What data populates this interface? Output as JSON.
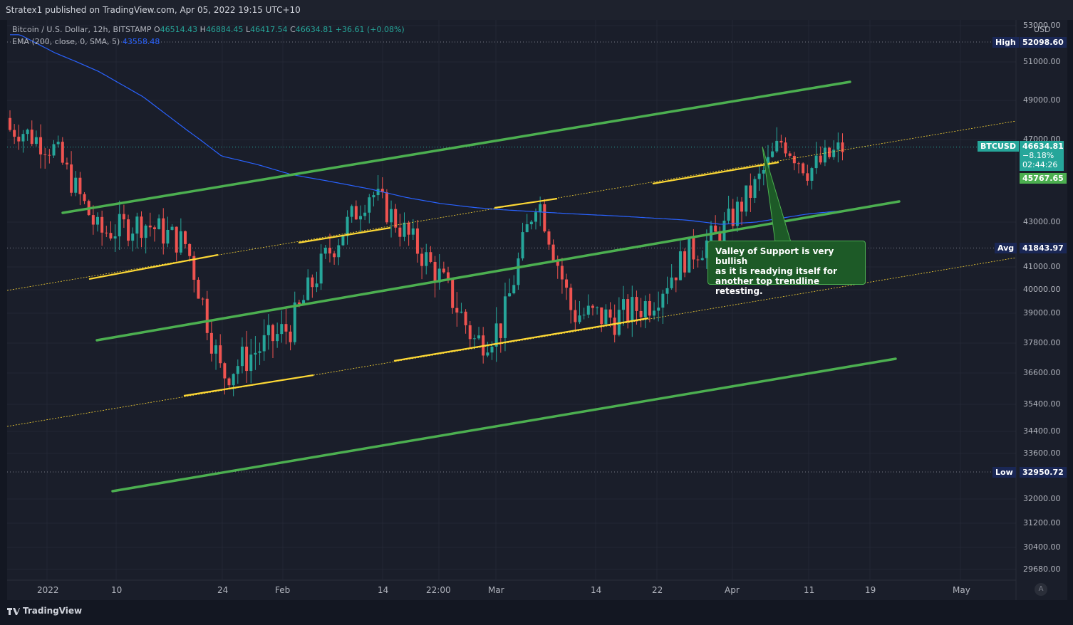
{
  "header": {
    "published": "Stratex1 published on TradingView.com, Apr 05, 2022 19:15 UTC+10"
  },
  "legend": {
    "symbol": "Bitcoin / U.S. Dollar, 12h, BITSTAMP",
    "o_label": "O",
    "o_value": "46514.43",
    "h_label": "H",
    "h_value": "46884.45",
    "l_label": "L",
    "l_value": "46417.54",
    "c_label": "C",
    "c_value": "46634.81",
    "change": "+36.61 (+0.08%)",
    "ema_label": "EMA (200, close, 0, SMA, 5)",
    "ema_value": "43558.48"
  },
  "price_axis": {
    "currency": "USD",
    "ticks": [
      "53000.00",
      "51000.00",
      "49000.00",
      "47000.00",
      "43000.00",
      "41000.00",
      "40000.00",
      "39000.00",
      "37800.00",
      "36600.00",
      "35400.00",
      "34400.00",
      "33600.00",
      "32000.00",
      "31200.00",
      "30400.00",
      "29680.00"
    ]
  },
  "tags": {
    "high_label": "High",
    "high_value": "52098.60",
    "symbol_label": "BTCUSD",
    "symbol_price": "46634.81",
    "symbol_change": "−8.18%",
    "symbol_countdown": "02:44:26",
    "ema_price": "45767.65",
    "avg_label": "Avg",
    "avg_value": "41843.97",
    "low_label": "Low",
    "low_value": "32950.72"
  },
  "date_axis": [
    "2022",
    "10",
    "24",
    "Feb",
    "14",
    "22:00",
    "Mar",
    "14",
    "22",
    "Apr",
    "11",
    "19",
    "May"
  ],
  "annotation": {
    "line1": "Valley of Support is very bullish",
    "line2": "as it is readying itself for",
    "line3": "another top trendline retesting."
  },
  "footer": {
    "brand": "TradingView"
  },
  "scale_button": "A",
  "colors": {
    "bull": "#26a69a",
    "bear": "#ef5350",
    "channel": "#4caf50",
    "midline": "#fdd835",
    "ema": "#2962ff"
  },
  "chart_data": {
    "type": "line",
    "title": "Bitcoin / U.S. Dollar, 12h, BITSTAMP",
    "xlabel": "",
    "ylabel": "",
    "ylim": [
      29680,
      53000
    ],
    "x": [
      "2022-01-01",
      "2022-01-05",
      "2022-01-10",
      "2022-01-15",
      "2022-01-20",
      "2022-01-24",
      "2022-01-28",
      "2022-02-01",
      "2022-02-05",
      "2022-02-10",
      "2022-02-14",
      "2022-02-18",
      "2022-02-22",
      "2022-02-25",
      "2022-03-01",
      "2022-03-05",
      "2022-03-10",
      "2022-03-14",
      "2022-03-18",
      "2022-03-22",
      "2022-03-26",
      "2022-03-29",
      "2022-04-01",
      "2022-04-05"
    ],
    "series": [
      {
        "name": "BTCUSD",
        "values": [
          47500,
          46500,
          42500,
          43000,
          42000,
          36500,
          37500,
          38500,
          41500,
          44500,
          42500,
          40500,
          37800,
          38500,
          44300,
          39000,
          38800,
          39500,
          41500,
          42500,
          44800,
          47000,
          45500,
          46634.81
        ]
      },
      {
        "name": "EMA (200, close, 0, SMA, 5)",
        "values": [
          52500,
          51500,
          50500,
          49200,
          47500,
          46200,
          45800,
          45300,
          45000,
          44600,
          44200,
          43900,
          43700,
          43600,
          43500,
          43400,
          43300,
          43200,
          43100,
          42900,
          43000,
          43200,
          43400,
          43558.48
        ]
      }
    ],
    "high": 52098.6,
    "avg": 41843.97,
    "low": 32950.72,
    "last": 46634.81
  }
}
